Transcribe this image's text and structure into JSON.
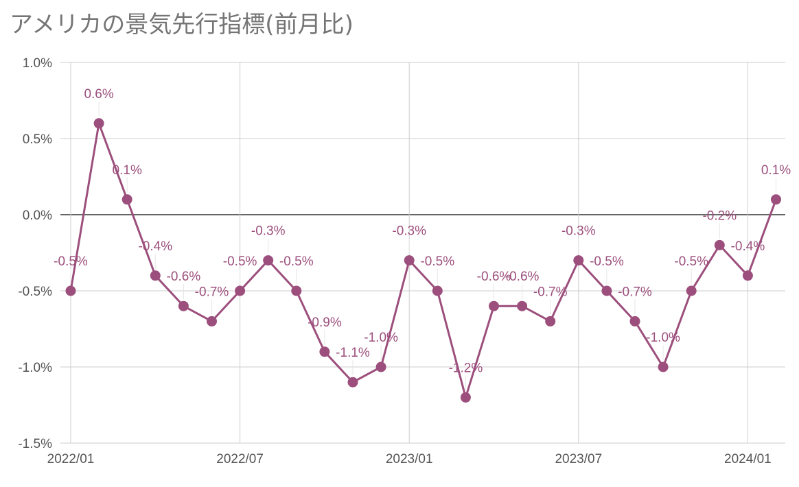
{
  "title": "アメリカの景気先行指標(前月比)",
  "colors": {
    "series": "#9c4f7c",
    "grid": "#cccccc",
    "zero": "#333333",
    "text": "#555555"
  },
  "chart_data": {
    "type": "line",
    "title": "アメリカの景気先行指標(前月比)",
    "x": [
      "2022/01",
      "2022/02",
      "2022/03",
      "2022/04",
      "2022/05",
      "2022/06",
      "2022/07",
      "2022/08",
      "2022/09",
      "2022/10",
      "2022/11",
      "2022/12",
      "2023/01",
      "2023/02",
      "2023/03",
      "2023/04",
      "2023/05",
      "2023/06",
      "2023/07",
      "2023/08",
      "2023/09",
      "2023/10",
      "2023/11",
      "2023/12",
      "2024/01",
      "2024/02"
    ],
    "x_tick_labels": [
      "2022/01",
      "2022/07",
      "2023/01",
      "2023/07",
      "2024/01"
    ],
    "y_tick_labels": [
      "1.0%",
      "0.5%",
      "0.0%",
      "-0.5%",
      "-1.0%",
      "-1.5%"
    ],
    "series": [
      {
        "values": [
          -0.5,
          0.6,
          0.1,
          -0.4,
          -0.6,
          -0.7,
          -0.5,
          -0.3,
          -0.5,
          -0.9,
          -1.1,
          -1.0,
          -0.3,
          -0.5,
          -1.2,
          -0.6,
          -0.6,
          -0.7,
          -0.3,
          -0.5,
          -0.7,
          -1.0,
          -0.5,
          -0.2,
          -0.4,
          0.1
        ],
        "labels": [
          "-0.5%",
          "0.6%",
          "0.1%",
          "-0.4%",
          "-0.6%",
          "-0.7%",
          "-0.5%",
          "-0.3%",
          "-0.5%",
          "-0.9%",
          "-1.1%",
          "-1.0%",
          "-0.3%",
          "-0.5%",
          "-1.2%",
          "-0.6%",
          "-0.6%",
          "-0.7%",
          "-0.3%",
          "-0.5%",
          "-0.7%",
          "-1.0%",
          "-0.5%",
          "-0.2%",
          "-0.4%",
          "0.1%"
        ]
      }
    ],
    "ylim": [
      -1.5,
      1.0
    ],
    "grid": true,
    "zero_line": true
  }
}
